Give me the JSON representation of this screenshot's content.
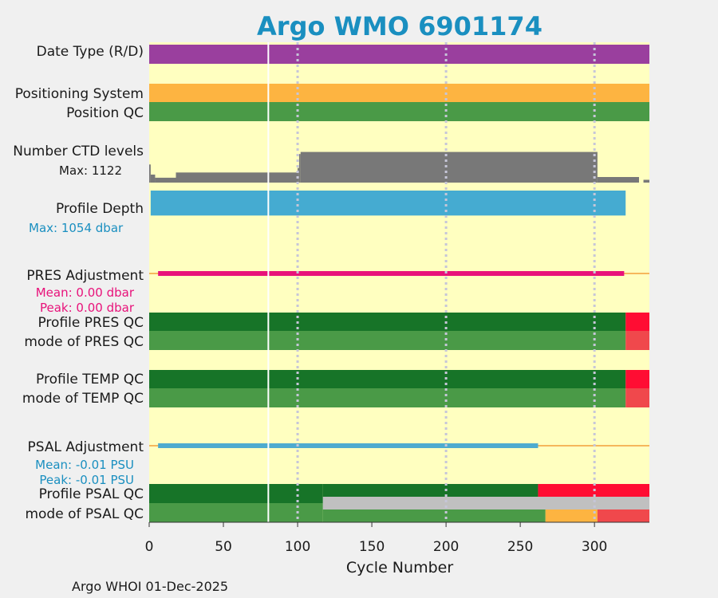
{
  "title": "Argo WMO 6901174",
  "footer": "Argo WHOI 01-Dec-2025",
  "colors": {
    "background": "#ffffc0",
    "title": "#1a8fc0",
    "date_type": "#9a3f9e",
    "positioning": "#fdb441",
    "qc_good_dark": "#177428",
    "qc_good": "#4a9a47",
    "qc_bad": "#ff0d33",
    "qc_probably_bad": "#f0484c",
    "qc_orange": "#fdb441",
    "qc_gray": "#c0c0c0",
    "ctd": "#787878",
    "depth": "#45abd1",
    "pres_adj": "#e8127a",
    "psal_adj": "#4eabcf",
    "adj_line": "#f6b75c",
    "gridline": "#c6c6d8"
  },
  "chart_data": {
    "type": "bar",
    "xlabel": "Cycle Number",
    "xlim": [
      0,
      337
    ],
    "xticks": [
      "0",
      "50",
      "100",
      "150",
      "200",
      "250",
      "300"
    ],
    "gridlines_x": [
      100,
      200,
      300
    ],
    "cycle_gaps": [
      80
    ],
    "rows": [
      {
        "label": "Date Type (R/D)",
        "segments": [
          [
            0,
            337,
            "date_type"
          ]
        ]
      },
      {
        "label": "Positioning System",
        "segments": [
          [
            0,
            337,
            "positioning"
          ]
        ]
      },
      {
        "label": "Position QC",
        "segments": [
          [
            0,
            337,
            "qc_good"
          ]
        ]
      },
      {
        "label": "Number CTD levels",
        "max_label": "Max: 1122",
        "max": 1122,
        "levels": [
          [
            0,
            1,
            520
          ],
          [
            1,
            4,
            230
          ],
          [
            4,
            18,
            140
          ],
          [
            18,
            100,
            290
          ],
          [
            100,
            101,
            420
          ],
          [
            101,
            102,
            820
          ],
          [
            102,
            302,
            880
          ],
          [
            302,
            330,
            160
          ],
          [
            330,
            333,
            0
          ],
          [
            333,
            337,
            80
          ]
        ]
      },
      {
        "label": "Profile Depth",
        "max_label": "Max: 1054 dbar",
        "max": 1054,
        "depth_range": [
          1,
          321
        ],
        "depth_value": 1000
      },
      {
        "label": "PRES Adjustment",
        "mean_label": "Mean: 0.00 dbar",
        "peak_label": "Peak: 0.00 dbar",
        "adj_range": [
          6,
          320
        ]
      },
      {
        "label": "Profile PRES QC",
        "segments": [
          [
            0,
            321,
            "qc_good_dark"
          ],
          [
            321,
            337,
            "qc_bad"
          ]
        ]
      },
      {
        "label": "mode of PRES QC",
        "segments": [
          [
            0,
            321,
            "qc_good"
          ],
          [
            321,
            337,
            "qc_probably_bad"
          ]
        ]
      },
      {
        "label": "Profile TEMP QC",
        "segments": [
          [
            0,
            321,
            "qc_good_dark"
          ],
          [
            321,
            337,
            "qc_bad"
          ]
        ]
      },
      {
        "label": "mode of TEMP QC",
        "segments": [
          [
            0,
            321,
            "qc_good"
          ],
          [
            321,
            337,
            "qc_probably_bad"
          ]
        ]
      },
      {
        "label": "PSAL Adjustment",
        "mean_label": "Mean: -0.01 PSU",
        "peak_label": "Peak: -0.01 PSU",
        "adj_range": [
          6,
          262
        ]
      },
      {
        "label": "Profile PSAL QC",
        "segments": [
          [
            0,
            117,
            "qc_good_dark"
          ],
          [
            117,
            262,
            "qc_good_dark"
          ],
          [
            262,
            337,
            "qc_bad"
          ]
        ]
      },
      {
        "label": "mode of PSAL QC",
        "segments": [
          [
            0,
            117,
            "qc_good"
          ],
          [
            117,
            267,
            "qc_good"
          ],
          [
            267,
            302,
            "qc_orange"
          ],
          [
            302,
            337,
            "qc_probably_bad"
          ]
        ],
        "overlay": [
          117,
          337,
          "qc_gray"
        ]
      }
    ]
  }
}
